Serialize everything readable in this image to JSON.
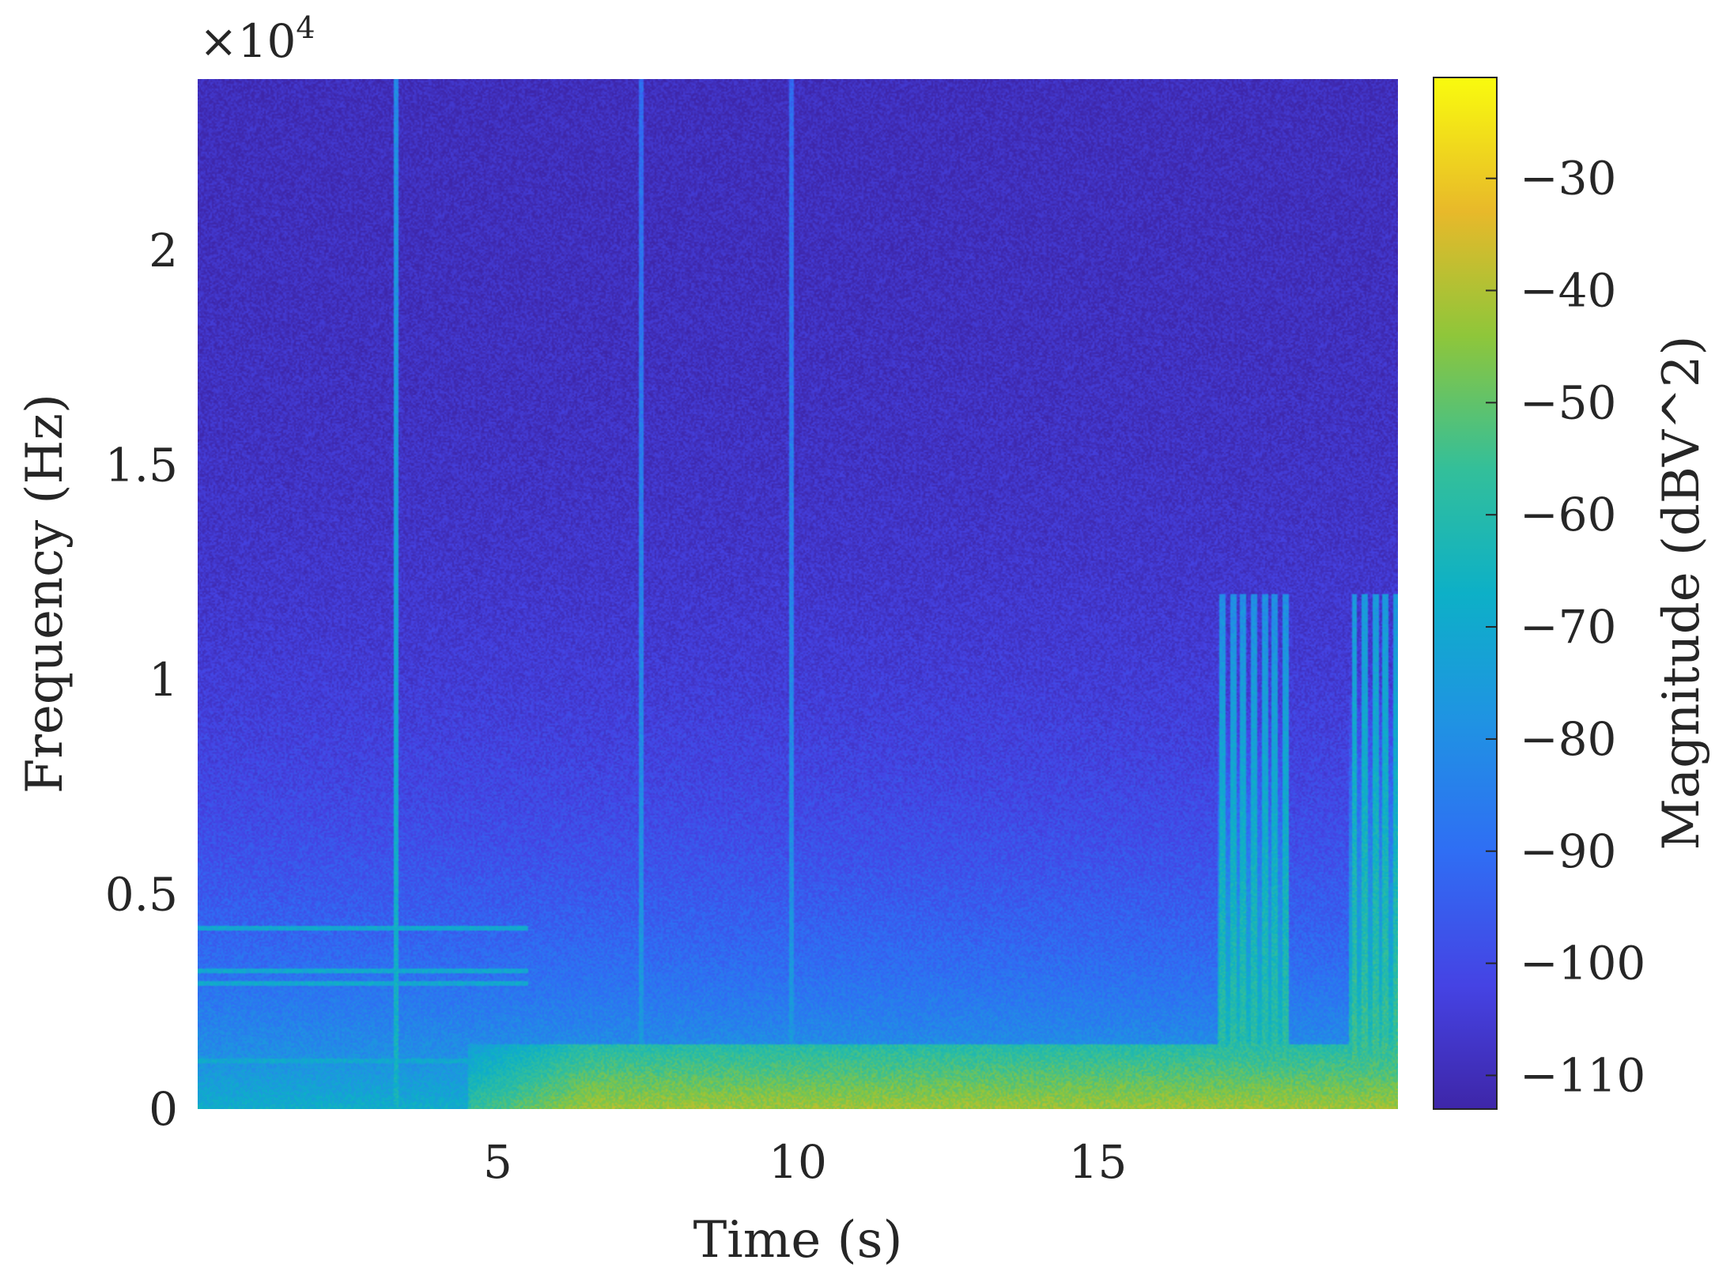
{
  "chart_data": {
    "type": "heatmap",
    "title": "",
    "xlabel": "Time (s)",
    "ylabel": "Frequency (Hz)",
    "xlim": [
      0,
      20
    ],
    "ylim": [
      0,
      24000
    ],
    "x_ticks": [
      5,
      10,
      15
    ],
    "x_tick_labels": [
      "5",
      "10",
      "15"
    ],
    "y_ticks": [
      0,
      5000,
      10000,
      15000,
      20000
    ],
    "y_tick_labels": [
      "0",
      "0.5",
      "1",
      "1.5",
      "2"
    ],
    "y_exponent_label": "×10",
    "y_exponent_power": "4",
    "colorbar": {
      "label": "Magnitude (dBV^2)",
      "clim": [
        -113,
        -21
      ],
      "ticks": [
        -30,
        -40,
        -50,
        -60,
        -70,
        -80,
        -90,
        -100,
        -110
      ],
      "tick_labels": [
        "−30",
        "−40",
        "−50",
        "−60",
        "−70",
        "−80",
        "−90",
        "−100",
        "−110"
      ],
      "colormap": "parula"
    },
    "features": [
      {
        "kind": "low-frequency-band",
        "t_start": 5.5,
        "t_end": 20,
        "f_max": 1500,
        "level": -42
      },
      {
        "kind": "harmonic-lines",
        "t_start": 0,
        "t_end": 5.5,
        "f_values": [
          4200,
          3200,
          2900,
          1100
        ],
        "level": -70
      },
      {
        "kind": "vertical-transient",
        "t": 3.3,
        "level": -65
      },
      {
        "kind": "vertical-transient",
        "t": 7.4,
        "level": -75
      },
      {
        "kind": "vertical-transient",
        "t": 9.9,
        "level": -75
      },
      {
        "kind": "burst-region",
        "t_start": 17.0,
        "t_end": 18.2,
        "f_max": 12000,
        "level": -55
      },
      {
        "kind": "burst-region",
        "t_start": 19.2,
        "t_end": 20,
        "f_max": 12000,
        "level": -52
      }
    ]
  }
}
